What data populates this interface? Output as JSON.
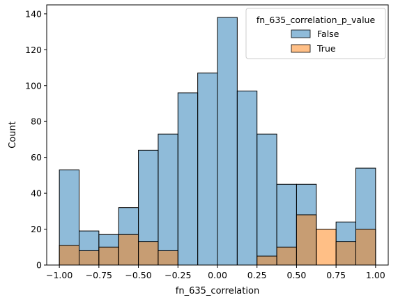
{
  "chart_data": {
    "type": "bar",
    "subtype": "histogram-overlay",
    "xlabel": "fn_635_correlation",
    "ylabel": "Count",
    "xlim": [
      -1.08,
      1.08
    ],
    "ylim": [
      0,
      145
    ],
    "x_ticks": [
      -1.0,
      -0.75,
      -0.5,
      -0.25,
      0.0,
      0.25,
      0.5,
      0.75,
      1.0
    ],
    "x_tick_labels": [
      "−1.00",
      "−0.75",
      "−0.50",
      "−0.25",
      "0.00",
      "0.25",
      "0.50",
      "0.75",
      "1.00"
    ],
    "y_ticks": [
      0,
      20,
      40,
      60,
      80,
      100,
      120,
      140
    ],
    "y_tick_labels": [
      "0",
      "20",
      "40",
      "60",
      "80",
      "100",
      "120",
      "140"
    ],
    "bin_edges": [
      -1.0,
      -0.875,
      -0.75,
      -0.625,
      -0.5,
      -0.375,
      -0.25,
      -0.125,
      0.0,
      0.125,
      0.25,
      0.375,
      0.5,
      0.625,
      0.75,
      0.875,
      1.0
    ],
    "series": [
      {
        "name": "False",
        "color": "#1f77b4",
        "values": [
          53,
          19,
          17,
          32,
          64,
          73,
          96,
          107,
          138,
          97,
          73,
          45,
          45,
          0,
          24,
          54
        ]
      },
      {
        "name": "True",
        "color": "#ff7f0e",
        "values": [
          11,
          8,
          10,
          17,
          13,
          8,
          0,
          0,
          0,
          0,
          5,
          10,
          28,
          20,
          13,
          20
        ]
      }
    ],
    "legend": {
      "title": "fn_635_correlation_p_value",
      "position": "top-right"
    },
    "grid": false
  }
}
